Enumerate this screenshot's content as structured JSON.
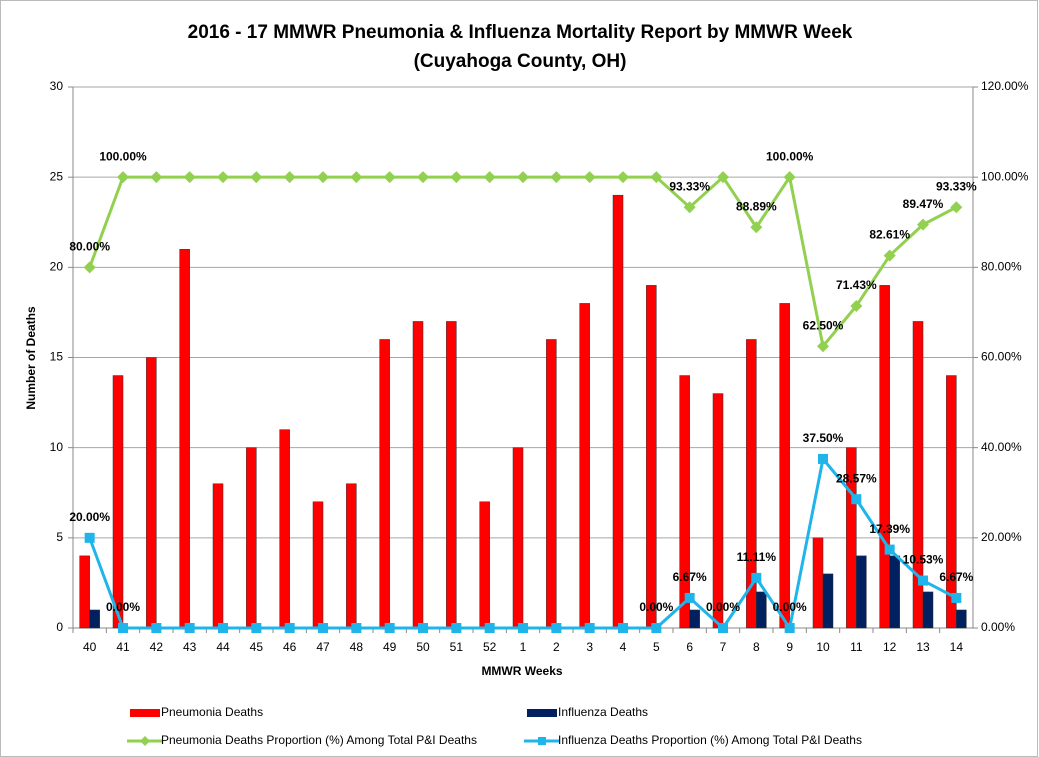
{
  "chart_data": {
    "type": "bar",
    "title": "2016 - 17 MMWR Pneumonia & Influenza Mortality Report by MMWR Week",
    "subtitle": "(Cuyahoga County, OH)",
    "x_label": "MMWR Weeks",
    "y_label": "Number of Deaths",
    "categories": [
      "40",
      "41",
      "42",
      "43",
      "44",
      "45",
      "46",
      "47",
      "48",
      "49",
      "50",
      "51",
      "52",
      "1",
      "2",
      "3",
      "4",
      "5",
      "6",
      "7",
      "8",
      "9",
      "10",
      "11",
      "12",
      "13",
      "14"
    ],
    "ylim": [
      0,
      30
    ],
    "yticks": [
      0,
      5,
      10,
      15,
      20,
      25,
      30
    ],
    "y2lim": [
      0,
      120
    ],
    "y2ticks": [
      {
        "value": 0,
        "label": "0.00%"
      },
      {
        "value": 20,
        "label": "20.00%"
      },
      {
        "value": 40,
        "label": "40.00%"
      },
      {
        "value": 60,
        "label": "60.00%"
      },
      {
        "value": 80,
        "label": "80.00%"
      },
      {
        "value": 100,
        "label": "100.00%"
      },
      {
        "value": 120,
        "label": "120.00%"
      }
    ],
    "grid": true,
    "legend": "bottom",
    "series": [
      {
        "name": "Pneumonia Deaths",
        "type": "bar",
        "color": "#ff0000",
        "values": [
          4,
          14,
          15,
          21,
          8,
          10,
          11,
          7,
          8,
          16,
          17,
          17,
          7,
          10,
          16,
          18,
          24,
          19,
          14,
          13,
          16,
          18,
          5,
          10,
          19,
          17,
          14
        ]
      },
      {
        "name": "Influenza Deaths",
        "type": "bar",
        "color": "#002060",
        "values": [
          1,
          0,
          0,
          0,
          0,
          0,
          0,
          0,
          0,
          0,
          0,
          0,
          0,
          0,
          0,
          0,
          0,
          0,
          1,
          0,
          2,
          0,
          3,
          4,
          4,
          2,
          1
        ]
      },
      {
        "name": "Pneumonia Deaths Proportion (%) Among Total P&I Deaths",
        "type": "line",
        "axis": "y2",
        "color": "#92d050",
        "values": [
          80,
          100,
          100,
          100,
          100,
          100,
          100,
          100,
          100,
          100,
          100,
          100,
          100,
          100,
          100,
          100,
          100,
          100,
          93.33,
          100,
          88.89,
          100,
          62.5,
          71.43,
          82.61,
          89.47,
          93.33
        ],
        "value_labels": [
          "80.00%",
          "100.00%",
          null,
          null,
          null,
          null,
          null,
          null,
          null,
          null,
          null,
          null,
          null,
          null,
          null,
          null,
          null,
          null,
          "93.33%",
          null,
          "88.89%",
          "100.00%",
          "62.50%",
          "71.43%",
          "82.61%",
          "89.47%",
          "93.33%"
        ]
      },
      {
        "name": "Influenza Deaths Proportion (%) Among Total P&I Deaths",
        "type": "line",
        "axis": "y2",
        "color": "#1fb4ea",
        "values": [
          20,
          0,
          0,
          0,
          0,
          0,
          0,
          0,
          0,
          0,
          0,
          0,
          0,
          0,
          0,
          0,
          0,
          0,
          6.67,
          0,
          11.11,
          0,
          37.5,
          28.57,
          17.39,
          10.53,
          6.67
        ],
        "value_labels": [
          "20.00%",
          "0.00%",
          null,
          null,
          null,
          null,
          null,
          null,
          null,
          null,
          null,
          null,
          null,
          null,
          null,
          null,
          null,
          "0.00%",
          "6.67%",
          "0.00%",
          "11.11%",
          "0.00%",
          "37.50%",
          "28.57%",
          "17.39%",
          "10.53%",
          "6.67%"
        ]
      }
    ]
  }
}
